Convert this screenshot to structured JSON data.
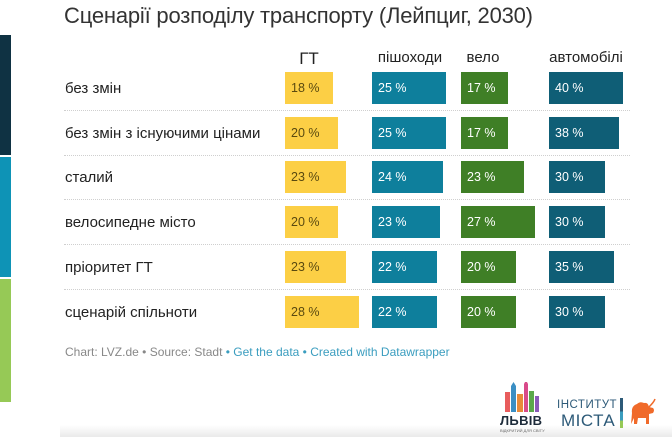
{
  "chart_data": {
    "type": "table",
    "title": "Сценарії розподілу транспорту (Лейпциг, 2030)",
    "columns": [
      "ГТ",
      "пішоходи",
      "вело",
      "автомобілі"
    ],
    "column_colors": [
      "#fccf45",
      "#0e7f9c",
      "#3f7f26",
      "#0f5e76"
    ],
    "label_colors": [
      "#5a4a10",
      "#ffffff",
      "#ffffff",
      "#ffffff"
    ],
    "unit": "%",
    "rows": [
      {
        "label": "без змін",
        "values": [
          18,
          25,
          17,
          40
        ],
        "texts": [
          "18 %",
          "25 %",
          "17 %",
          "40 %"
        ]
      },
      {
        "label": "без змін з існуючими цінами",
        "values": [
          20,
          25,
          17,
          38
        ],
        "texts": [
          "20 %",
          "25 %",
          "17 %",
          "38 %"
        ]
      },
      {
        "label": "сталий",
        "values": [
          23,
          24,
          23,
          30
        ],
        "texts": [
          "23 %",
          "24 %",
          "23 %",
          "30 %"
        ]
      },
      {
        "label": "велосипедне місто",
        "values": [
          20,
          23,
          27,
          30
        ],
        "texts": [
          "20 %",
          "23 %",
          "27 %",
          "30 %"
        ]
      },
      {
        "label": "пріоритет ГТ",
        "values": [
          23,
          22,
          20,
          35
        ],
        "texts": [
          "23 %",
          "22 %",
          "20 %",
          "35 %"
        ]
      },
      {
        "label": "сценарій спільноти",
        "values": [
          28,
          22,
          20,
          30
        ],
        "texts": [
          "28 %",
          "22 %",
          "20 %",
          "30 %"
        ]
      }
    ]
  },
  "footer": {
    "chart_credit": "Chart: LVZ.de",
    "sep1": " • ",
    "source": "Source: Stadt",
    "sep2": " • ",
    "get_data": "Get the data",
    "sep3": " • ",
    "created_with": "Created with Datawrapper"
  },
  "logos": {
    "lviv": "ЛЬВІВ",
    "lviv_tagline": "ВІДКРИТИЙ ДЛЯ СВІТУ",
    "institute_line1": "ІНСТИТУТ",
    "institute_line2": "МІСТА"
  },
  "stripe_colors": [
    "#0f3243",
    "#0e93b6",
    "#96c956"
  ]
}
